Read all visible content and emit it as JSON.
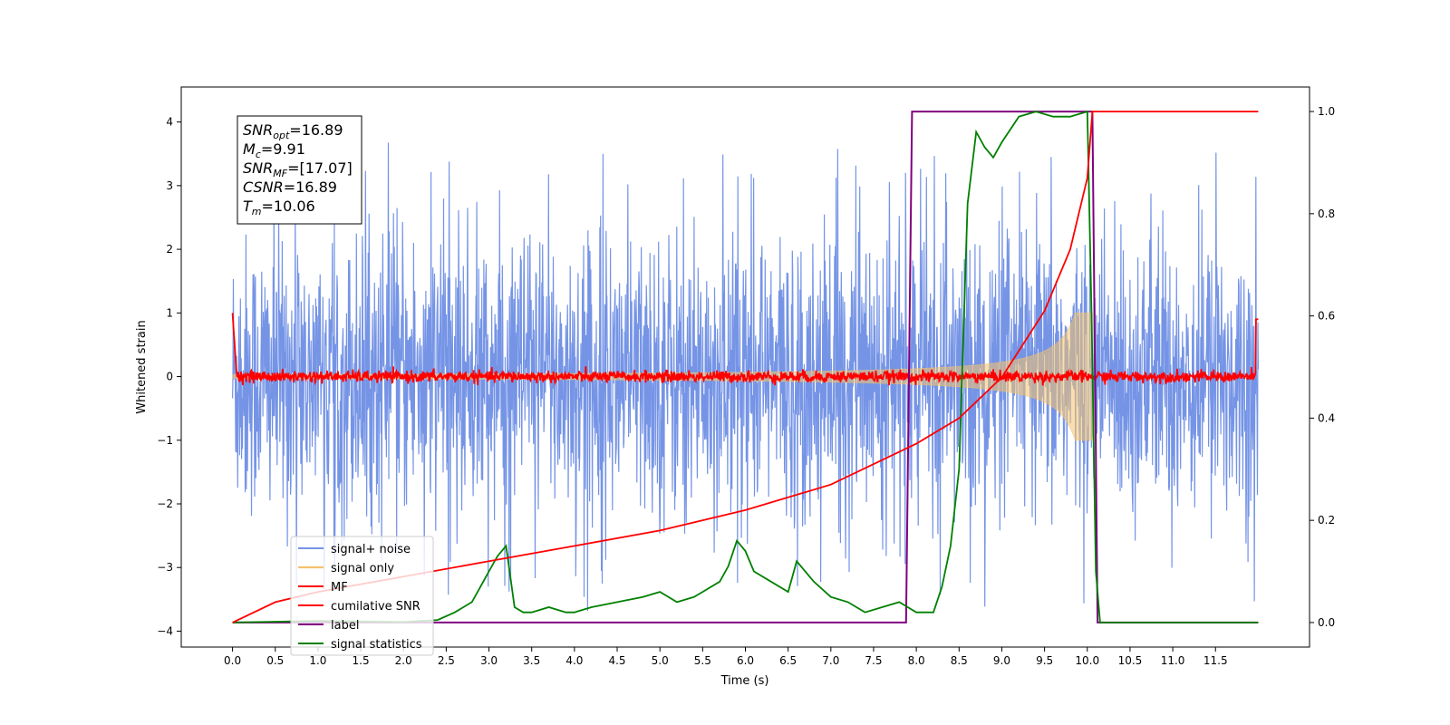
{
  "chart_data": {
    "type": "line",
    "xlabel": "Time (s)",
    "ylabel": "Whitened strain",
    "xlim": [
      -0.6,
      12.6
    ],
    "ylim": [
      -4.25,
      4.55
    ],
    "y2lim": [
      -0.048,
      1.048
    ],
    "x_ticks": [
      "0.0",
      "0.5",
      "1.0",
      "1.5",
      "2.0",
      "2.5",
      "3.0",
      "3.5",
      "4.0",
      "4.5",
      "5.0",
      "5.5",
      "6.0",
      "6.5",
      "7.0",
      "7.5",
      "8.0",
      "8.5",
      "9.0",
      "9.5",
      "10.0",
      "10.5",
      "11.0",
      "11.5"
    ],
    "y_ticks": [
      "4",
      "3",
      "2",
      "1",
      "0",
      "−1",
      "−2",
      "−3",
      "−4"
    ],
    "y2_ticks": [
      "1.0",
      "0.8",
      "0.6",
      "0.4",
      "0.2",
      "0.0"
    ],
    "annotation": [
      {
        "base": "SNR",
        "sub": "opt",
        "value": "=16.89"
      },
      {
        "base": "M",
        "sub": "c",
        "value": "=9.91"
      },
      {
        "base": "SNR",
        "sub": "MF",
        "value": "=[17.07]"
      },
      {
        "base": "CSNR",
        "sub": "",
        "value": "=16.89"
      },
      {
        "base": "T",
        "sub": "m",
        "value": "=10.06"
      }
    ],
    "series": [
      {
        "name": "signal+ noise",
        "color": "#7594e6",
        "axis": "left",
        "t_start": 0.0,
        "t_end": 12.0,
        "envelope": 3.6
      },
      {
        "name": "signal only",
        "color": "#f5c26b",
        "axis": "left",
        "t_start": 0.0,
        "t_end": 10.06,
        "amp_start": 0.03,
        "amp_end": 1.0
      },
      {
        "name": "MF",
        "color": "#ff0000",
        "axis": "left",
        "t_start": 0.0,
        "t_end": 12.0,
        "level": 0.0
      },
      {
        "name": "cumilative SNR",
        "color": "#ff0000",
        "axis": "right",
        "x": [
          0.0,
          0.5,
          1.0,
          2.0,
          3.0,
          4.0,
          5.0,
          6.0,
          7.0,
          7.5,
          8.0,
          8.5,
          9.0,
          9.5,
          9.8,
          10.0,
          10.06,
          12.0
        ],
        "y": [
          0.0,
          0.04,
          0.06,
          0.09,
          0.12,
          0.15,
          0.18,
          0.22,
          0.27,
          0.31,
          0.35,
          0.4,
          0.48,
          0.61,
          0.73,
          0.87,
          1.0,
          1.0
        ]
      },
      {
        "name": "label",
        "color": "#800080",
        "axis": "right",
        "x": [
          0.0,
          7.88,
          7.95,
          10.06,
          10.12,
          12.0
        ],
        "y": [
          0.0,
          0.0,
          1.0,
          1.0,
          0.0,
          0.0
        ]
      },
      {
        "name": "signal statistics",
        "color": "#008000",
        "axis": "right",
        "x": [
          0.0,
          1.0,
          2.0,
          2.4,
          2.6,
          2.8,
          2.9,
          3.0,
          3.1,
          3.2,
          3.3,
          3.4,
          3.5,
          3.7,
          3.9,
          4.0,
          4.2,
          4.5,
          4.8,
          5.0,
          5.2,
          5.4,
          5.5,
          5.7,
          5.8,
          5.9,
          6.0,
          6.1,
          6.3,
          6.5,
          6.6,
          6.8,
          7.0,
          7.2,
          7.4,
          7.6,
          7.8,
          7.9,
          8.0,
          8.2,
          8.3,
          8.4,
          8.5,
          8.6,
          8.7,
          8.8,
          8.9,
          9.0,
          9.2,
          9.4,
          9.6,
          9.8,
          10.0,
          10.05,
          10.1,
          10.15,
          12.0
        ],
        "y": [
          0.0,
          0.003,
          0.001,
          0.005,
          0.02,
          0.04,
          0.07,
          0.1,
          0.13,
          0.15,
          0.03,
          0.02,
          0.02,
          0.03,
          0.02,
          0.02,
          0.03,
          0.04,
          0.05,
          0.06,
          0.04,
          0.05,
          0.06,
          0.08,
          0.11,
          0.16,
          0.14,
          0.1,
          0.08,
          0.06,
          0.12,
          0.08,
          0.05,
          0.04,
          0.02,
          0.03,
          0.04,
          0.03,
          0.02,
          0.02,
          0.07,
          0.15,
          0.3,
          0.82,
          0.96,
          0.93,
          0.91,
          0.94,
          0.99,
          1.0,
          0.99,
          0.99,
          1.0,
          0.6,
          0.1,
          0.0,
          0.0
        ]
      }
    ],
    "legend_position": "lower-left",
    "grid": false
  }
}
